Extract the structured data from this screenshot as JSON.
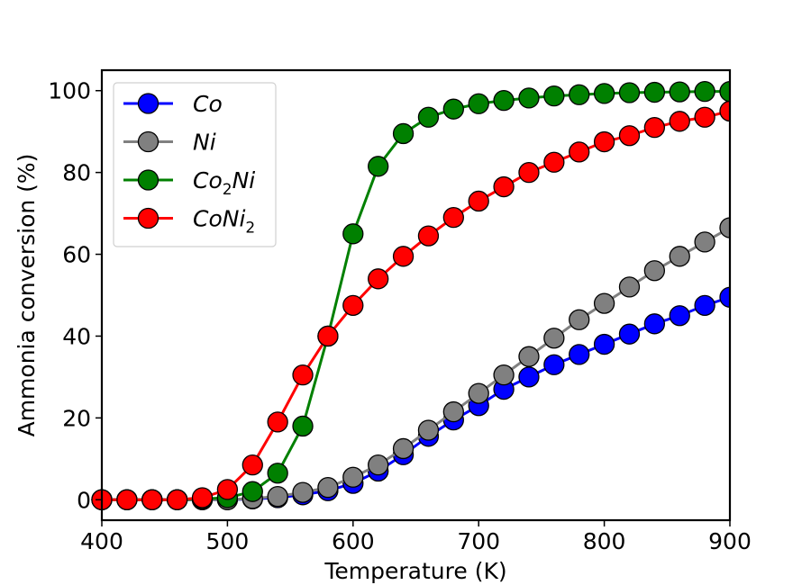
{
  "chart_data": {
    "type": "line",
    "xlabel": "Temperature (K)",
    "ylabel": "Ammonia conversion (%)",
    "xlim": [
      400,
      900
    ],
    "ylim": [
      -5,
      105
    ],
    "xticks": [
      400,
      500,
      600,
      700,
      800,
      900
    ],
    "yticks": [
      0,
      20,
      40,
      60,
      80,
      100
    ],
    "grid": false,
    "legend_position": "upper-left",
    "x": [
      400,
      420,
      440,
      460,
      480,
      500,
      520,
      540,
      560,
      580,
      600,
      620,
      640,
      660,
      680,
      700,
      720,
      740,
      760,
      780,
      800,
      820,
      840,
      860,
      880,
      900
    ],
    "series": [
      {
        "name": "Co",
        "legend_base": "Co",
        "legend_sub": "",
        "legend_tail": "",
        "color": "#0000ff",
        "line_color": "#0000ff",
        "values": [
          0,
          0,
          0,
          0,
          0,
          0,
          0.2,
          0.5,
          1.2,
          2.2,
          4,
          7,
          11,
          15.5,
          19.5,
          23,
          27,
          30,
          33,
          35.5,
          38,
          40.5,
          43,
          45,
          47.5,
          49.5
        ]
      },
      {
        "name": "Ni",
        "legend_base": "Ni",
        "legend_sub": "",
        "legend_tail": "",
        "color": "#808080",
        "line_color": "#808080",
        "values": [
          0,
          0,
          0,
          0,
          0,
          0,
          0.3,
          0.8,
          1.8,
          3,
          5.5,
          8.5,
          12.5,
          17,
          21.5,
          26,
          30.5,
          35,
          39.5,
          44,
          48,
          52,
          56,
          59.5,
          63,
          66.5
        ]
      },
      {
        "name": "Co2Ni",
        "legend_base": "Co",
        "legend_sub": "2",
        "legend_tail": "Ni",
        "color": "#008000",
        "line_color": "#008000",
        "values": [
          0,
          0,
          0,
          0,
          0.2,
          0.5,
          2,
          6.5,
          18,
          40,
          65,
          81.5,
          89.5,
          93.5,
          95.5,
          96.8,
          97.6,
          98.2,
          98.7,
          99,
          99.3,
          99.5,
          99.6,
          99.7,
          99.8,
          99.8
        ]
      },
      {
        "name": "CoNi2",
        "legend_base": "CoNi",
        "legend_sub": "2",
        "legend_tail": "",
        "color": "#ff0000",
        "line_color": "#ff0000",
        "values": [
          0,
          0,
          0,
          0,
          0.5,
          2.5,
          8.5,
          19,
          30.5,
          40,
          47.5,
          54,
          59.5,
          64.5,
          69,
          73,
          76.5,
          80,
          82.5,
          85,
          87.5,
          89,
          91,
          92.5,
          93.5,
          95
        ]
      }
    ]
  }
}
